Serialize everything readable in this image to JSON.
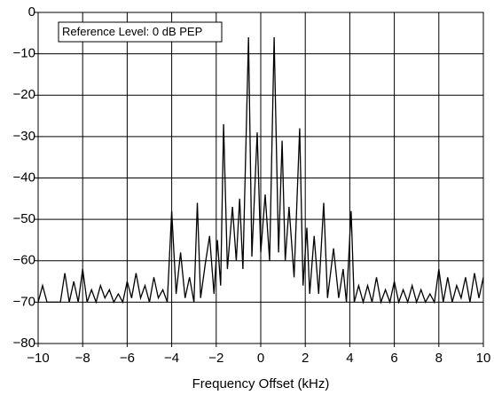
{
  "chart_data": {
    "type": "line",
    "annotation": "Reference Level: 0 dB PEP",
    "xlabel": "Frequency Offset (kHz)",
    "x": [
      -10,
      -9.8,
      -9.6,
      -9.4,
      -9.2,
      -9.0,
      -8.8,
      -8.6,
      -8.4,
      -8.2,
      -8.0,
      -7.8,
      -7.6,
      -7.4,
      -7.2,
      -7.0,
      -6.8,
      -6.6,
      -6.4,
      -6.2,
      -6.0,
      -5.8,
      -5.6,
      -5.4,
      -5.2,
      -5.0,
      -4.8,
      -4.6,
      -4.4,
      -4.2,
      -4.0,
      -3.8,
      -3.6,
      -3.4,
      -3.2,
      -3.0,
      -2.85,
      -2.7,
      -2.5,
      -2.3,
      -2.1,
      -1.95,
      -1.8,
      -1.67,
      -1.5,
      -1.27,
      -1.1,
      -0.95,
      -0.8,
      -0.55,
      -0.4,
      -0.16,
      0,
      0.2,
      0.4,
      0.6,
      0.8,
      0.96,
      1.1,
      1.27,
      1.5,
      1.75,
      1.9,
      2.07,
      2.2,
      2.4,
      2.6,
      2.83,
      3.0,
      3.27,
      3.5,
      3.7,
      3.85,
      4.06,
      4.2,
      4.4,
      4.6,
      4.8,
      5.0,
      5.2,
      5.4,
      5.6,
      5.8,
      6.0,
      6.2,
      6.4,
      6.6,
      6.8,
      7.0,
      7.2,
      7.4,
      7.6,
      7.8,
      8.0,
      8.2,
      8.4,
      8.6,
      8.8,
      9.0,
      9.2,
      9.4,
      9.6,
      9.8,
      10
    ],
    "values": [
      -70,
      -66,
      -70,
      -70,
      -70,
      -70,
      -63,
      -70,
      -65,
      -70,
      -62,
      -70,
      -67,
      -70,
      -66,
      -69,
      -67,
      -70,
      -68,
      -70,
      -65,
      -69,
      -63,
      -69,
      -66,
      -70,
      -64,
      -69,
      -67,
      -70,
      -48,
      -68,
      -58,
      -69,
      -64,
      -70,
      -46,
      -69,
      -61,
      -54,
      -68,
      -55,
      -66,
      -27,
      -62,
      -47,
      -60,
      -45,
      -62,
      -6,
      -59,
      -29,
      -58,
      -44,
      -60,
      -6,
      -58,
      -31,
      -60,
      -47,
      -64,
      -28,
      -66,
      -52,
      -68,
      -54,
      -68,
      -46,
      -69,
      -57,
      -69,
      -62,
      -70,
      -48,
      -70,
      -66,
      -70,
      -66,
      -70,
      -64,
      -70,
      -67,
      -70,
      -65,
      -70,
      -67,
      -70,
      -66,
      -70,
      -67,
      -70,
      -68,
      -70,
      -62,
      -70,
      -64,
      -70,
      -66,
      -69,
      -64,
      -70,
      -63,
      -69,
      -64
    ],
    "color": "#000000",
    "xlim": [
      -10,
      10
    ],
    "xticks": [
      {
        "value": -10,
        "label": "−10"
      },
      {
        "value": -8,
        "label": "−8"
      },
      {
        "value": -6,
        "label": "−6"
      },
      {
        "value": -4,
        "label": "−4"
      },
      {
        "value": -2,
        "label": "−2"
      },
      0,
      2,
      4,
      6,
      8,
      10
    ],
    "ylim": [
      -80,
      0
    ],
    "yticks": [
      0,
      {
        "value": -10,
        "label": "−10"
      },
      {
        "value": -20,
        "label": "−20"
      },
      {
        "value": -30,
        "label": "−30"
      },
      {
        "value": -40,
        "label": "−40"
      },
      {
        "value": -50,
        "label": "−50"
      },
      {
        "value": -60,
        "label": "−60"
      },
      {
        "value": -70,
        "label": "−70"
      },
      {
        "value": -80,
        "label": "−80"
      }
    ],
    "grid": true
  }
}
